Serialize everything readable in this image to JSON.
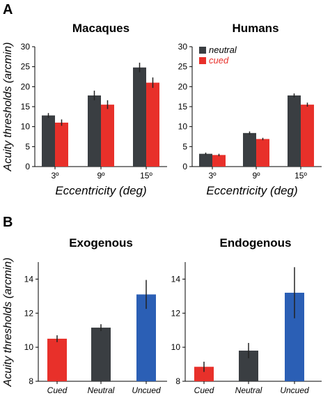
{
  "colors": {
    "neutral": "#3a3e42",
    "cued": "#e8302a",
    "uncued": "#2b5fb5",
    "axis": "#000000",
    "cued_text": "#e8302a"
  },
  "panels": {
    "A": {
      "label": "A"
    },
    "B": {
      "label": "B"
    }
  },
  "chart_data": [
    {
      "id": "macaques",
      "type": "bar",
      "title": "Macaques",
      "ylabel": "Acuity thresholds (arcmin)",
      "xlabel": "Eccentricity (deg)",
      "ylim": [
        0,
        30
      ],
      "yticks": [
        0,
        5,
        10,
        15,
        20,
        25,
        30
      ],
      "categories": [
        "3º",
        "9º",
        "15º"
      ],
      "series": [
        {
          "key": "neutral",
          "values": [
            12.8,
            17.8,
            24.8
          ],
          "errors": [
            0.6,
            1.2,
            1.2
          ]
        },
        {
          "key": "cued",
          "values": [
            11.0,
            15.5,
            21.0
          ],
          "errors": [
            0.8,
            1.1,
            1.3
          ]
        }
      ]
    },
    {
      "id": "humans",
      "type": "bar",
      "title": "Humans",
      "ylabel": "",
      "xlabel": "Eccentricity (deg)",
      "ylim": [
        0,
        30
      ],
      "yticks": [
        0,
        5,
        10,
        15,
        20,
        25,
        30
      ],
      "categories": [
        "3º",
        "9º",
        "15º"
      ],
      "legend": {
        "position": "top-left",
        "entries": [
          {
            "key": "neutral",
            "label": "neutral"
          },
          {
            "key": "cued",
            "label": "cued"
          }
        ]
      },
      "series": [
        {
          "key": "neutral",
          "name": "neutral",
          "values": [
            3.2,
            8.4,
            17.8
          ],
          "errors": [
            0.3,
            0.4,
            0.5
          ]
        },
        {
          "key": "cued",
          "name": "cued",
          "values": [
            2.9,
            6.9,
            15.5
          ],
          "errors": [
            0.3,
            0.3,
            0.5
          ]
        }
      ]
    },
    {
      "id": "exogenous",
      "type": "bar",
      "title": "Exogenous",
      "ylabel": "Acuity thresholds (arcmin)",
      "xlabel": "",
      "ylim": [
        8,
        15
      ],
      "yticks": [
        8,
        10,
        12,
        14
      ],
      "categories": [
        "Cued",
        "Neutral",
        "Uncued"
      ],
      "bar_keys": [
        "cued",
        "neutral",
        "uncued"
      ],
      "values": [
        10.5,
        11.15,
        13.1
      ],
      "errors": [
        0.2,
        0.2,
        0.85
      ]
    },
    {
      "id": "endogenous",
      "type": "bar",
      "title": "Endogenous",
      "ylabel": "",
      "xlabel": "",
      "ylim": [
        8,
        15
      ],
      "yticks": [
        8,
        10,
        12,
        14
      ],
      "categories": [
        "Cued",
        "Neutral",
        "Uncued"
      ],
      "bar_keys": [
        "cued",
        "neutral",
        "uncued"
      ],
      "values": [
        8.85,
        9.8,
        13.2
      ],
      "errors": [
        0.3,
        0.45,
        1.5
      ]
    }
  ]
}
